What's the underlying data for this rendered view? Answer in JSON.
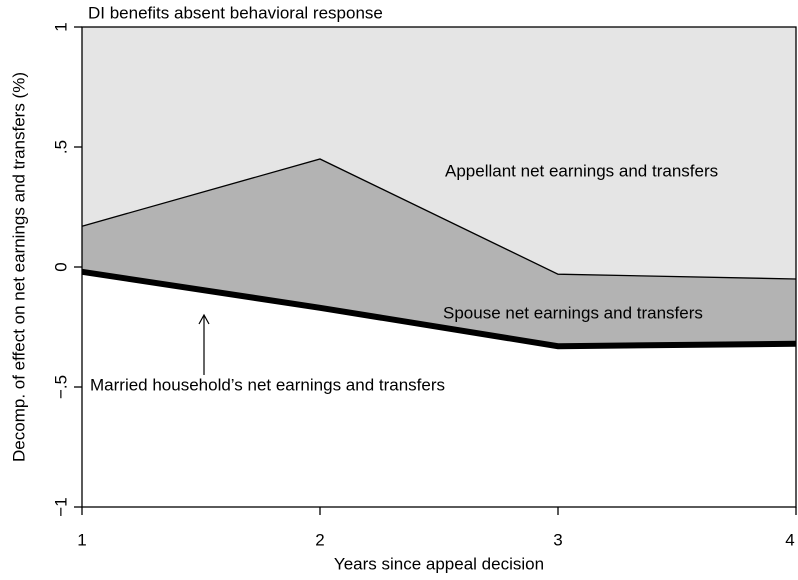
{
  "chart_data": {
    "type": "area",
    "title": "DI benefits absent behavioral response",
    "x_label": "Years since appeal decision",
    "y_label": "Decomp. of effect on net earnings and transfers (%)",
    "x": [
      1,
      2,
      3,
      4
    ],
    "series": [
      {
        "name": "DI benefits absent behavioral response",
        "color": "#e5e5e5",
        "values": [
          1,
          1,
          1,
          1
        ]
      },
      {
        "name": "Spouse net earnings and transfers",
        "color": "#b3b3b3",
        "values": [
          0.17,
          0.45,
          -0.03,
          -0.05
        ]
      },
      {
        "name": "Married household’s net earnings and transfers",
        "color": "#000000",
        "values": [
          -0.02,
          -0.17,
          -0.33,
          -0.32
        ]
      }
    ],
    "annotation": "Appellant net earnings and transfers",
    "xlim": [
      1,
      4
    ],
    "xticks": [
      1,
      2,
      3,
      4
    ],
    "ylim": [
      -1,
      1
    ],
    "yticks": [
      {
        "value": -1,
        "label": "−1"
      },
      {
        "value": -0.5,
        "label": "−.5"
      },
      0,
      {
        "value": 0.5,
        "label": ".5"
      },
      1
    ]
  }
}
